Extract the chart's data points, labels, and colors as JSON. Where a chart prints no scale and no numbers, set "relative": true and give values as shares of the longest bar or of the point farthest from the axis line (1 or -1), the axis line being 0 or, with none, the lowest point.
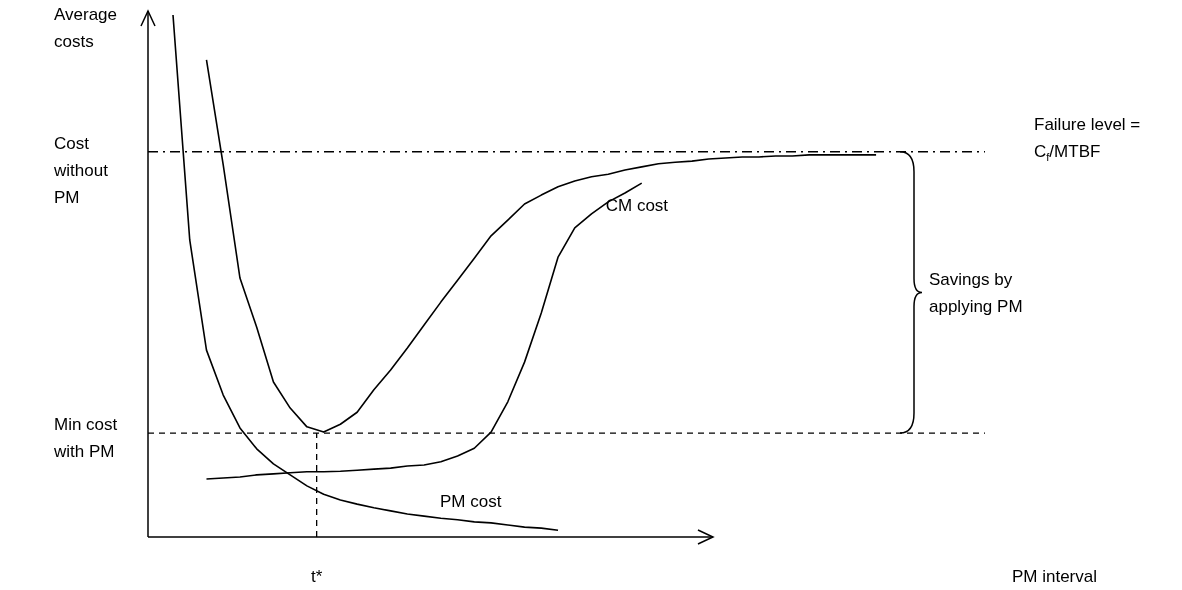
{
  "chart_data": {
    "type": "line",
    "relative": true,
    "ylabel": "Average costs",
    "marker": "none",
    "categories": [
      null,
      null,
      null,
      null,
      null,
      null,
      null,
      null,
      null,
      null,
      null,
      null,
      null,
      null,
      null,
      null,
      null,
      null,
      null,
      null,
      null,
      null,
      null,
      null,
      null,
      null,
      null,
      null,
      null,
      null,
      null,
      null,
      null,
      null,
      null,
      null,
      null,
      null,
      null,
      null,
      null,
      null,
      null
    ],
    "series": [
      {
        "color": "#000000",
        "values": [
          null,
          null,
          0.914,
          0.713,
          0.496,
          0.402,
          0.297,
          0.247,
          0.211,
          0.201,
          0.216,
          0.239,
          0.282,
          0.32,
          0.362,
          0.406,
          0.45,
          0.492,
          0.534,
          0.577,
          0.607,
          0.638,
          0.655,
          0.671,
          0.682,
          0.69,
          0.695,
          0.703,
          0.709,
          0.715,
          0.718,
          0.72,
          0.724,
          0.726,
          0.728,
          0.728,
          0.73,
          0.73,
          0.732,
          0.732,
          0.732,
          0.732,
          0.732
        ]
      },
      {
        "name": "CM cost",
        "color": "#000000",
        "values": [
          null,
          null,
          0.111,
          0.113,
          0.115,
          0.119,
          0.121,
          0.123,
          0.125,
          0.125,
          0.126,
          0.128,
          0.13,
          0.132,
          0.136,
          0.138,
          0.144,
          0.155,
          0.17,
          0.201,
          0.259,
          0.335,
          0.429,
          0.536,
          0.592,
          0.619,
          0.642,
          0.659,
          0.678,
          null,
          null,
          null,
          null,
          null,
          null,
          null,
          null,
          null,
          null,
          null,
          null,
          null,
          null
        ]
      },
      {
        "name": "PM cost",
        "color": "#000000",
        "values": [
          1.0,
          0.569,
          0.358,
          0.272,
          0.209,
          0.169,
          0.14,
          0.119,
          0.098,
          0.082,
          0.071,
          0.063,
          0.056,
          0.05,
          0.044,
          0.04,
          0.036,
          0.033,
          0.029,
          0.027,
          0.023,
          0.019,
          0.017,
          0.013,
          null,
          null,
          null,
          null,
          null,
          null,
          null,
          null,
          null,
          null,
          null,
          null,
          null,
          null,
          null,
          null,
          null,
          null,
          null
        ]
      }
    ],
    "ref_lines": [
      {
        "axis": "y",
        "value": 0.738,
        "label": "Failure level = C$_{f}$/MTBF",
        "color": "#000000",
        "line_style": "dashdot"
      },
      {
        "axis": "y",
        "value": 0.199,
        "label": "Min cost with PM",
        "color": "#000000",
        "line_style": "dashed"
      }
    ],
    "annotations": [
      "Cost without PM",
      "Savings by applying PM",
      "t*",
      "PM interval"
    ]
  }
}
